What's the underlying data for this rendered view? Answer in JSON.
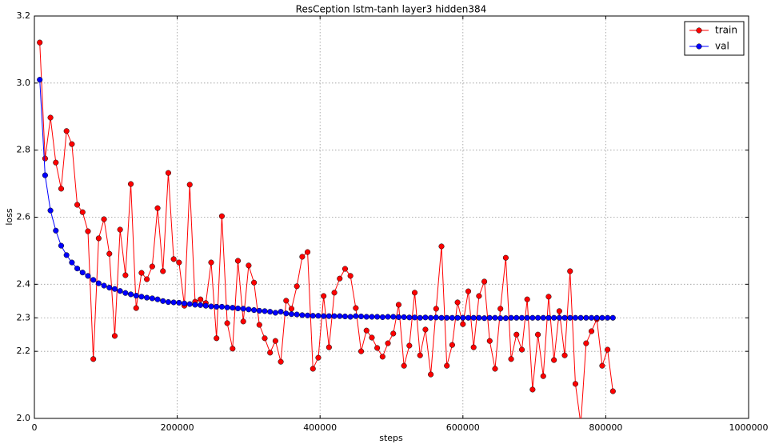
{
  "chart_data": {
    "type": "line",
    "title": "ResCeption lstm-tanh layer3 hidden384",
    "xlabel": "steps",
    "ylabel": "loss",
    "x": [
      7500,
      15000,
      22500,
      30000,
      37500,
      45000,
      52500,
      60000,
      67500,
      75000,
      82500,
      90000,
      97500,
      105000,
      112500,
      120000,
      127500,
      135000,
      142500,
      150000,
      157500,
      165000,
      172500,
      180000,
      187500,
      195000,
      202500,
      210000,
      217500,
      225000,
      232500,
      240000,
      247500,
      255000,
      262500,
      270000,
      277500,
      285000,
      292500,
      300000,
      307500,
      315000,
      322500,
      330000,
      337500,
      345000,
      352500,
      360000,
      367500,
      375000,
      382500,
      390000,
      397500,
      405000,
      412500,
      420000,
      427500,
      435000,
      442500,
      450000,
      457500,
      465000,
      472500,
      480000,
      487500,
      495000,
      502500,
      510000,
      517500,
      525000,
      532500,
      540000,
      547500,
      555000,
      562500,
      570000,
      577500,
      585000,
      592500,
      600000,
      607500,
      615000,
      622500,
      630000,
      637500,
      645000,
      652500,
      660000,
      667500,
      675000,
      682500,
      690000,
      697500,
      705000,
      712500,
      720000,
      727500,
      735000,
      742500,
      750000,
      757500,
      765000,
      772500,
      780000,
      787500,
      795000,
      802500,
      810000
    ],
    "series": [
      {
        "name": "train",
        "color": "#ff0000",
        "values": [
          3.121,
          2.775,
          2.897,
          2.763,
          2.685,
          2.857,
          2.818,
          2.637,
          2.615,
          2.558,
          2.177,
          2.537,
          2.594,
          2.491,
          2.246,
          2.563,
          2.427,
          2.699,
          2.329,
          2.434,
          2.415,
          2.453,
          2.627,
          2.439,
          2.732,
          2.475,
          2.465,
          2.336,
          2.697,
          2.348,
          2.355,
          2.344,
          2.465,
          2.239,
          2.603,
          2.284,
          2.208,
          2.47,
          2.289,
          2.456,
          2.405,
          2.279,
          2.239,
          2.196,
          2.231,
          2.169,
          2.351,
          2.327,
          2.394,
          2.482,
          2.496,
          2.148,
          2.181,
          2.365,
          2.212,
          2.375,
          2.417,
          2.446,
          2.425,
          2.329,
          2.2,
          2.262,
          2.241,
          2.21,
          2.184,
          2.224,
          2.253,
          2.339,
          2.157,
          2.217,
          2.375,
          2.188,
          2.265,
          2.131,
          2.327,
          2.513,
          2.157,
          2.219,
          2.346,
          2.281,
          2.379,
          2.212,
          2.365,
          2.408,
          2.231,
          2.148,
          2.327,
          2.479,
          2.177,
          2.25,
          2.205,
          2.355,
          2.086,
          2.25,
          2.126,
          2.363,
          2.174,
          2.32,
          2.188,
          2.439,
          2.103,
          1.983,
          2.224,
          2.26,
          2.296,
          2.157,
          2.205,
          2.081
        ]
      },
      {
        "name": "val",
        "color": "#0000ff",
        "values": [
          3.01,
          2.725,
          2.62,
          2.56,
          2.515,
          2.487,
          2.465,
          2.447,
          2.435,
          2.425,
          2.413,
          2.403,
          2.396,
          2.39,
          2.386,
          2.38,
          2.374,
          2.37,
          2.366,
          2.363,
          2.36,
          2.358,
          2.355,
          2.35,
          2.347,
          2.346,
          2.345,
          2.343,
          2.341,
          2.339,
          2.338,
          2.336,
          2.334,
          2.333,
          2.333,
          2.331,
          2.33,
          2.328,
          2.327,
          2.325,
          2.323,
          2.321,
          2.32,
          2.318,
          2.315,
          2.318,
          2.313,
          2.311,
          2.31,
          2.308,
          2.307,
          2.306,
          2.306,
          2.305,
          2.305,
          2.305,
          2.305,
          2.304,
          2.303,
          2.305,
          2.304,
          2.303,
          2.303,
          2.303,
          2.302,
          2.303,
          2.303,
          2.302,
          2.302,
          2.301,
          2.301,
          2.3,
          2.301,
          2.3,
          2.301,
          2.3,
          2.3,
          2.3,
          2.3,
          2.3,
          2.3,
          2.3,
          2.3,
          2.299,
          2.3,
          2.3,
          2.299,
          2.299,
          2.3,
          2.3,
          2.3,
          2.3,
          2.3,
          2.3,
          2.3,
          2.3,
          2.3,
          2.3,
          2.3,
          2.3,
          2.3,
          2.3,
          2.3,
          2.3,
          2.3,
          2.3,
          2.3,
          2.3
        ]
      }
    ],
    "xlim": [
      0,
      1000000
    ],
    "xticks": [
      0,
      200000,
      400000,
      600000,
      800000,
      1000000
    ],
    "ylim": [
      2,
      3.2
    ],
    "yticks": [
      {
        "value": 2,
        "label": "2.0"
      },
      2.2,
      2.4,
      2.6,
      2.8,
      {
        "value": 3,
        "label": "3.0"
      },
      2.3,
      {
        "value": 3.2,
        "label": "3.2"
      }
    ],
    "grid": true,
    "legend": "upper right",
    "marker": "circle"
  }
}
